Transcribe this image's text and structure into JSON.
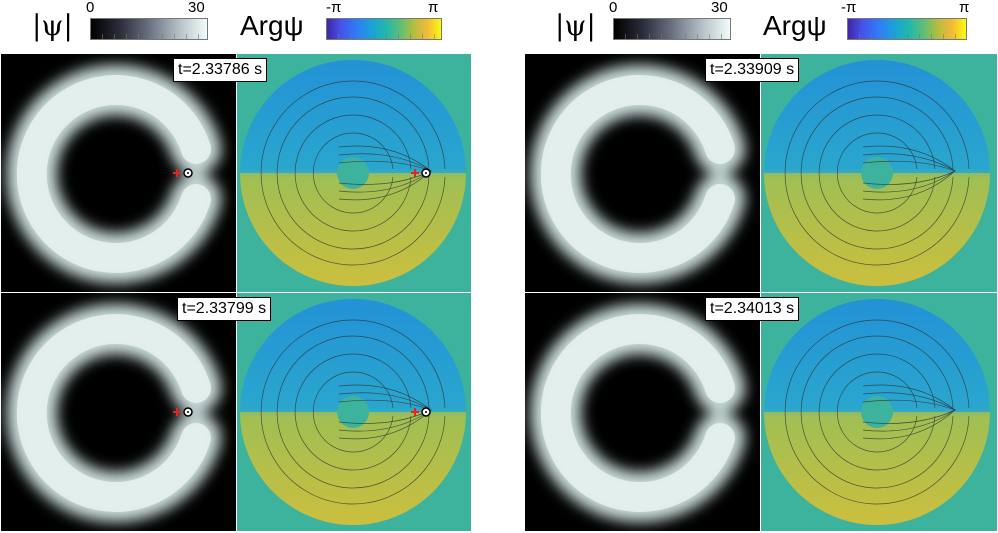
{
  "colorbars": {
    "magnitude": {
      "symbol": "|ψ|",
      "min_label": "0",
      "max_label": "30"
    },
    "phase": {
      "symbol": "Argψ",
      "min_label": "-π",
      "max_label": "π"
    }
  },
  "panels": [
    {
      "time_label": "t=2.33786 s",
      "markers": true
    },
    {
      "time_label": "t=2.33799 s",
      "markers": true
    },
    {
      "time_label": "t=2.33909 s",
      "markers": false
    },
    {
      "time_label": "t=2.34013 s",
      "markers": false
    }
  ],
  "colors": {
    "background_phase": "#3db39d",
    "phase_top": "#1e9fd6",
    "phase_bottom": "#c8be3e",
    "vortex_marker": "#e8231f"
  }
}
